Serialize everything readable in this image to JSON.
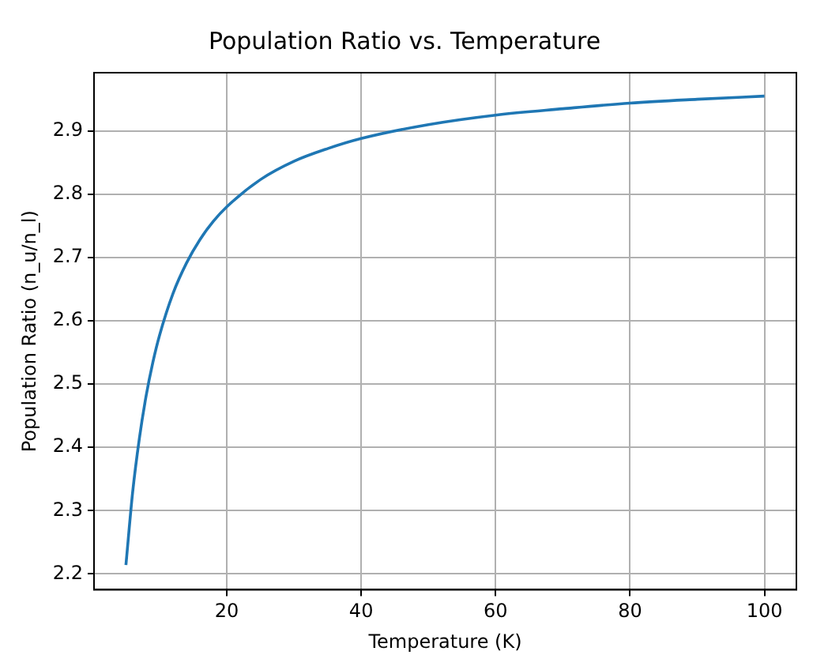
{
  "chart_data": {
    "type": "line",
    "title": "Population Ratio vs. Temperature",
    "xlabel": "Temperature (K)",
    "ylabel": "Population Ratio (n_u/n_l)",
    "x": [
      5,
      6,
      7,
      8,
      9,
      10,
      12,
      14,
      16,
      18,
      20,
      25,
      30,
      35,
      40,
      50,
      60,
      70,
      80,
      90,
      100
    ],
    "series": [
      {
        "color": "#1f77b4",
        "values": [
          2.214,
          2.329,
          2.414,
          2.481,
          2.534,
          2.577,
          2.643,
          2.691,
          2.728,
          2.757,
          2.78,
          2.823,
          2.852,
          2.872,
          2.888,
          2.91,
          2.925,
          2.935,
          2.944,
          2.95,
          2.955
        ]
      }
    ],
    "xlim": [
      0.25,
      104.75
    ],
    "ylim": [
      2.175,
      2.992
    ],
    "xticks": [
      20,
      40,
      60,
      80,
      100
    ],
    "yticks": [
      2.2,
      2.3,
      2.4,
      2.5,
      2.6,
      2.7,
      2.8,
      2.9
    ],
    "grid": true,
    "legend": false,
    "marker": "none",
    "line_style": "solid"
  }
}
